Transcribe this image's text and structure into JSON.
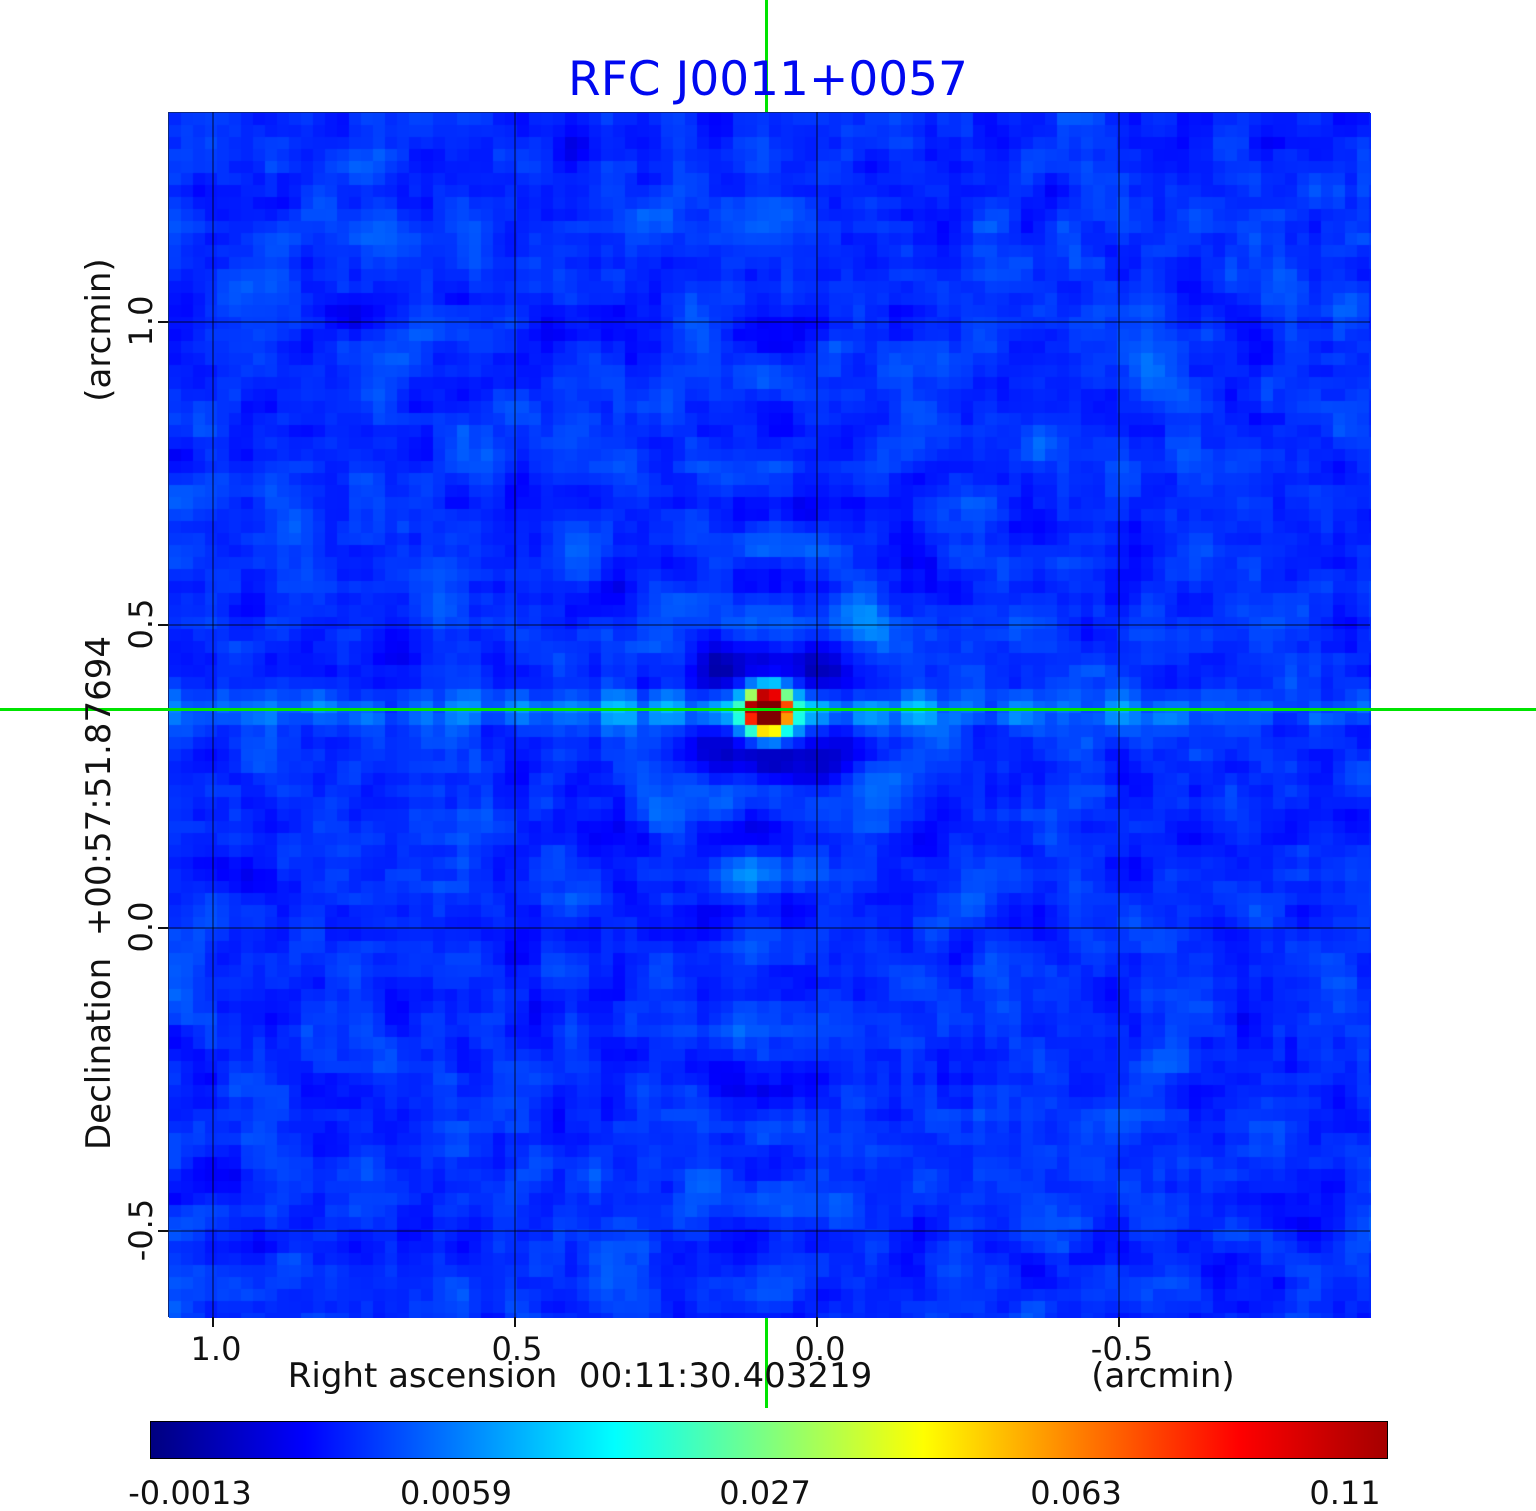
{
  "chart_data": {
    "type": "heatmap",
    "title": "RFC J0011+0057",
    "xlabel": "Right ascension  00:11:30.403219",
    "x_unit": "(arcmin)",
    "ylabel": "Declination  +00:57:51.87694",
    "y_unit": "(arcmin)",
    "x_ticks": [
      "1.0",
      "0.5",
      "0.0",
      "-0.5"
    ],
    "y_ticks": [
      "1.0",
      "0.5",
      "0.0",
      "-0.5"
    ],
    "x_range_arcmin": [
      1.07,
      -0.92
    ],
    "y_range_arcmin": [
      -0.64,
      1.35
    ],
    "grid": true,
    "colormap": "jet",
    "colorbar": {
      "tick_labels": [
        "-0.0013",
        "0.0059",
        "0.027",
        "0.063",
        "0.11"
      ],
      "orientation": "horizontal"
    },
    "peak_source": {
      "ra_offset_arcmin": 0.08,
      "dec_offset_arcmin": 0.36,
      "approx_peak_value": 0.11
    },
    "crosshair": {
      "color": "#00e400",
      "x_arcmin": 0.08,
      "y_arcmin": 0.36
    },
    "title_color": "#0008f0"
  }
}
